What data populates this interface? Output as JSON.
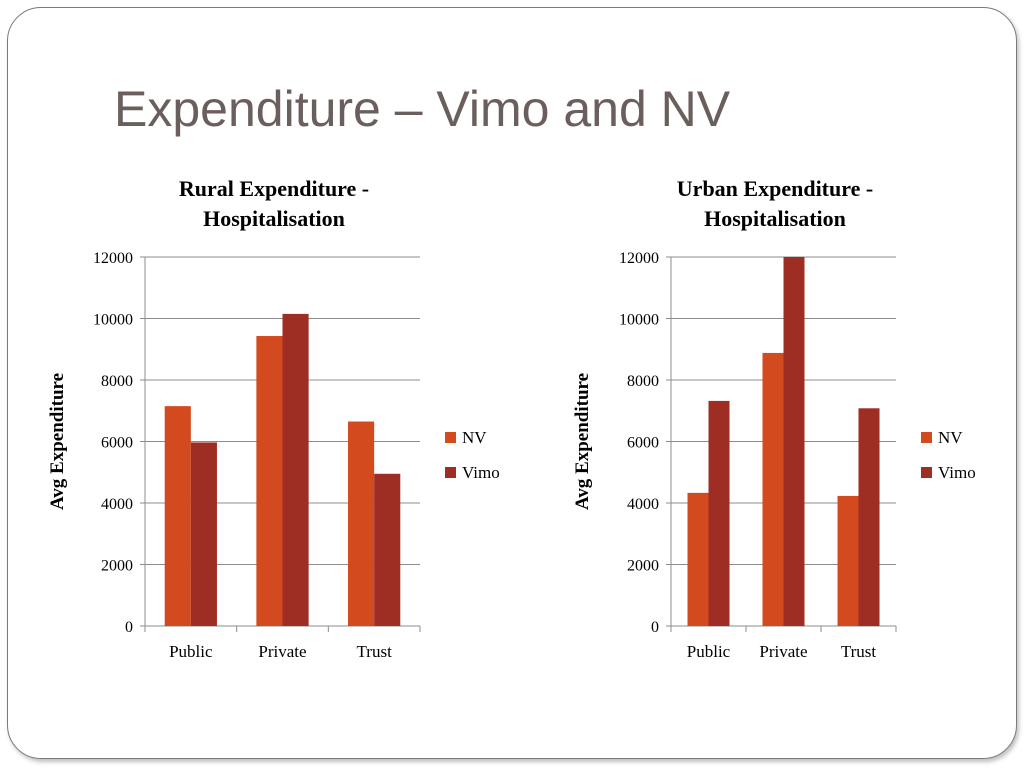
{
  "slide": {
    "title": "Expenditure – Vimo and NV"
  },
  "chart_data": [
    {
      "type": "bar",
      "title_lines": [
        "Rural Expenditure -",
        "Hospitalisation"
      ],
      "categories": [
        "Public",
        "Private",
        "Trust"
      ],
      "series": [
        {
          "name": "NV",
          "values": [
            7150,
            9430,
            6650
          ],
          "color": "#d34a1e"
        },
        {
          "name": "Vimo",
          "values": [
            5970,
            10150,
            4950
          ],
          "color": "#9e2d24"
        }
      ],
      "ylabel": "Avg Expenditure",
      "xlabel": "",
      "ylim": [
        0,
        12000
      ],
      "yticks": [
        "0",
        "2000",
        "4000",
        "6000",
        "8000",
        "10000",
        "12000"
      ],
      "grid": true,
      "legend": "right"
    },
    {
      "type": "bar",
      "title_lines": [
        "Urban Expenditure -",
        "Hospitalisation"
      ],
      "categories": [
        "Public",
        "Private",
        "Trust"
      ],
      "series": [
        {
          "name": "NV",
          "values": [
            4330,
            8880,
            4230
          ],
          "color": "#d34a1e"
        },
        {
          "name": "Vimo",
          "values": [
            7320,
            12000,
            7080
          ],
          "color": "#9e2d24"
        }
      ],
      "ylabel": "Avg Expenditure",
      "xlabel": "",
      "ylim": [
        0,
        12000
      ],
      "yticks": [
        "0",
        "2000",
        "4000",
        "6000",
        "8000",
        "10000",
        "12000"
      ],
      "grid": true,
      "legend": "right"
    }
  ]
}
